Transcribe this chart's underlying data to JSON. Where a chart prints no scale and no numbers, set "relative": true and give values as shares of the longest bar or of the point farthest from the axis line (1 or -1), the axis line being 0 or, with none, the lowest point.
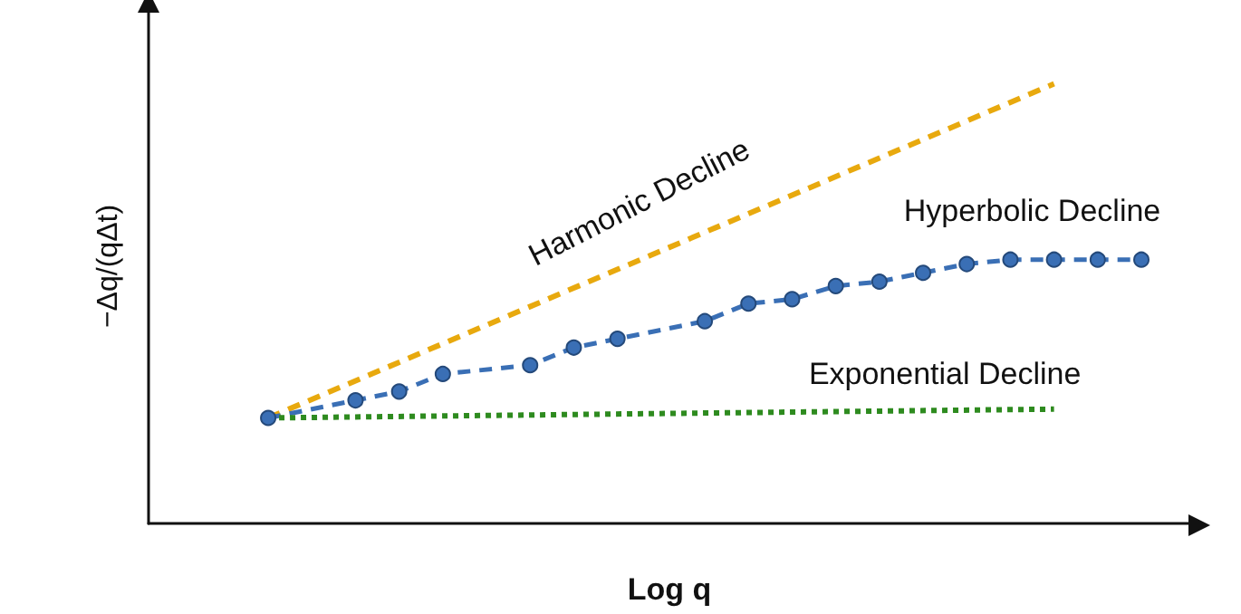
{
  "chart_data": {
    "type": "line",
    "relative": true,
    "xlabel": "Log q",
    "ylabel": "−Δq/(qΔt)",
    "grid": false,
    "legend": false,
    "categories": [
      null,
      null,
      null,
      null,
      null,
      null,
      null,
      null,
      null,
      null,
      null,
      null,
      null,
      null,
      null,
      null,
      null,
      null,
      null,
      null,
      null
    ],
    "series": [
      {
        "name": "Harmonic Decline",
        "color": "#e8a90e",
        "line_style": "dashed",
        "marker": "none",
        "values": [
          0.24,
          null,
          null,
          null,
          null,
          null,
          null,
          null,
          null,
          null,
          null,
          null,
          null,
          null,
          null,
          null,
          null,
          null,
          1.0,
          null,
          null
        ]
      },
      {
        "name": "Hyperbolic Decline",
        "color": "#3a6fb5",
        "line_style": "dashed",
        "marker": "circle",
        "values": [
          0.24,
          null,
          0.28,
          0.3,
          0.34,
          null,
          0.36,
          0.4,
          0.42,
          null,
          0.46,
          0.5,
          0.51,
          0.54,
          0.55,
          0.57,
          0.59,
          0.6,
          0.6,
          0.6,
          0.6
        ]
      },
      {
        "name": "Exponential Decline",
        "color": "#2e8b1f",
        "line_style": "dotted",
        "marker": "none",
        "values": [
          0.24,
          null,
          null,
          null,
          null,
          null,
          null,
          null,
          null,
          null,
          null,
          null,
          null,
          null,
          null,
          null,
          null,
          null,
          0.26,
          null,
          null
        ]
      }
    ]
  }
}
